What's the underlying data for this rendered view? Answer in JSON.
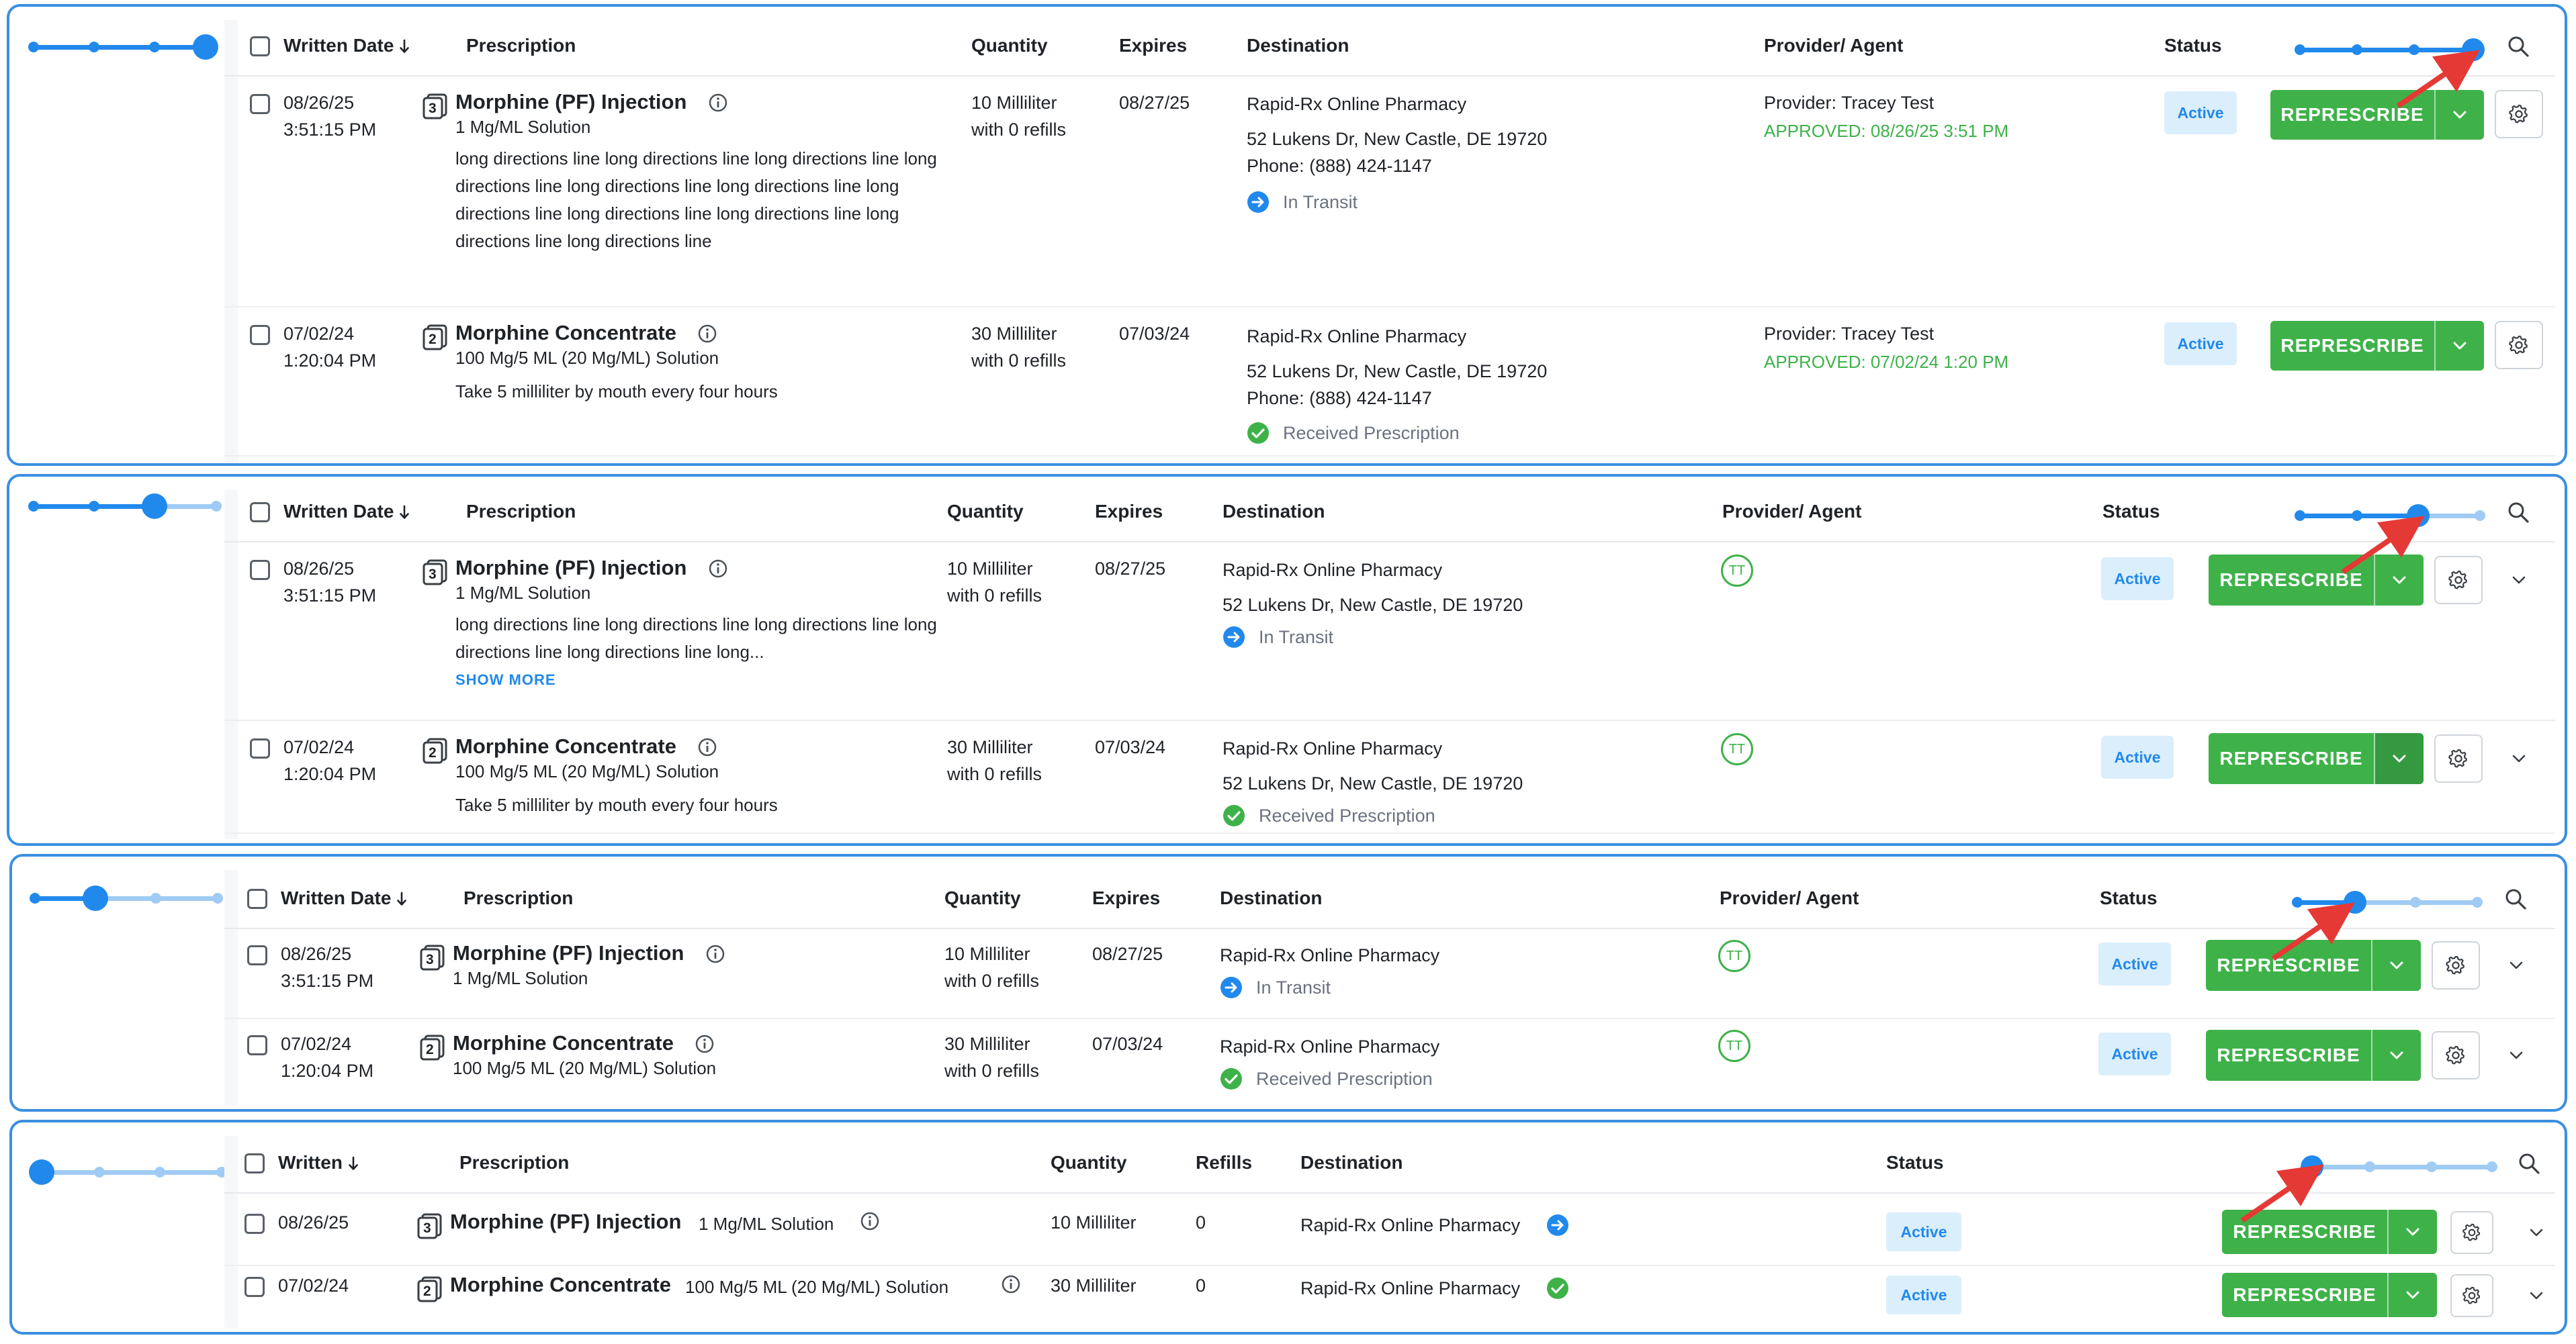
{
  "colors": {
    "accent_blue": "#2189ec",
    "slider_track_light": "#9fcbf4",
    "green": "#3eb249",
    "badge_bg": "#dbeefc",
    "panel_border": "#3b8fe0",
    "annotation_red": "#e53935"
  },
  "panels": [
    {
      "density_level": 4,
      "headers": {
        "written": "Written Date",
        "prescription": "Prescription",
        "quantity": "Quantity",
        "expires": "Expires",
        "destination": "Destination",
        "provider": "Provider/ Agent",
        "status": "Status"
      },
      "rows": [
        {
          "date": "08/26/25",
          "time": "3:51:15 PM",
          "rx_count": "3",
          "name": "Morphine (PF) Injection",
          "strength": "1 Mg/ML Solution",
          "directions": "long directions line long directions line long directions line long directions line long directions line long directions line long directions line long directions line long directions line long directions line long directions line",
          "qty": "10 Milliliter",
          "refills": "with 0 refills",
          "expires": "08/27/25",
          "pharmacy": "Rapid-Rx Online Pharmacy",
          "address": "52 Lukens Dr, New Castle, DE 19720",
          "phone": "Phone: (888) 424-1147",
          "transmission": "In Transit",
          "transmission_icon": "arrow-right-circle-icon",
          "provider": "Provider: Tracey Test",
          "approved": "APPROVED: 08/26/25 3:51 PM",
          "status": "Active",
          "action": "REPRESCRIBE"
        },
        {
          "date": "07/02/24",
          "time": "1:20:04 PM",
          "rx_count": "2",
          "name": "Morphine Concentrate",
          "strength": "100 Mg/5 ML (20 Mg/ML) Solution",
          "directions": "Take 5 milliliter by mouth every four hours",
          "qty": "30 Milliliter",
          "refills": "with 0 refills",
          "expires": "07/03/24",
          "pharmacy": "Rapid-Rx Online Pharmacy",
          "address": "52 Lukens Dr, New Castle, DE 19720",
          "phone": "Phone: (888) 424-1147",
          "transmission": "Received Prescription",
          "transmission_icon": "check-circle-icon",
          "provider": "Provider: Tracey Test",
          "approved": "APPROVED: 07/02/24 1:20 PM",
          "status": "Active",
          "action": "REPRESCRIBE"
        }
      ]
    },
    {
      "density_level": 3,
      "headers": {
        "written": "Written Date",
        "prescription": "Prescription",
        "quantity": "Quantity",
        "expires": "Expires",
        "destination": "Destination",
        "provider": "Provider/ Agent",
        "status": "Status"
      },
      "rows": [
        {
          "date": "08/26/25",
          "time": "3:51:15 PM",
          "rx_count": "3",
          "name": "Morphine (PF) Injection",
          "strength": "1 Mg/ML Solution",
          "directions": "long directions line long directions line long directions line long directions line long directions line long...",
          "show_more": "SHOW MORE",
          "qty": "10 Milliliter",
          "refills": "with 0 refills",
          "expires": "08/27/25",
          "pharmacy": "Rapid-Rx Online Pharmacy",
          "address": "52 Lukens Dr, New Castle, DE 19720",
          "transmission": "In Transit",
          "provider_initials": "TT",
          "status": "Active",
          "action": "REPRESCRIBE"
        },
        {
          "date": "07/02/24",
          "time": "1:20:04 PM",
          "rx_count": "2",
          "name": "Morphine Concentrate",
          "strength": "100 Mg/5 ML (20 Mg/ML) Solution",
          "directions": "Take 5 milliliter by mouth every four hours",
          "qty": "30 Milliliter",
          "refills": "with 0 refills",
          "expires": "07/03/24",
          "pharmacy": "Rapid-Rx Online Pharmacy",
          "address": "52 Lukens Dr, New Castle, DE 19720",
          "transmission": "Received Prescription",
          "provider_initials": "TT",
          "status": "Active",
          "action": "REPRESCRIBE"
        }
      ]
    },
    {
      "density_level": 2,
      "headers": {
        "written": "Written Date",
        "prescription": "Prescription",
        "quantity": "Quantity",
        "expires": "Expires",
        "destination": "Destination",
        "provider": "Provider/ Agent",
        "status": "Status"
      },
      "rows": [
        {
          "date": "08/26/25",
          "time": "3:51:15 PM",
          "rx_count": "3",
          "name": "Morphine (PF) Injection",
          "strength": "1 Mg/ML Solution",
          "qty": "10 Milliliter",
          "refills": "with 0 refills",
          "expires": "08/27/25",
          "pharmacy": "Rapid-Rx Online Pharmacy",
          "transmission": "In Transit",
          "provider_initials": "TT",
          "status": "Active",
          "action": "REPRESCRIBE"
        },
        {
          "date": "07/02/24",
          "time": "1:20:04 PM",
          "rx_count": "2",
          "name": "Morphine Concentrate",
          "strength": "100 Mg/5 ML (20 Mg/ML) Solution",
          "qty": "30 Milliliter",
          "refills": "with 0 refills",
          "expires": "07/03/24",
          "pharmacy": "Rapid-Rx Online Pharmacy",
          "transmission": "Received Prescription",
          "provider_initials": "TT",
          "status": "Active",
          "action": "REPRESCRIBE"
        }
      ]
    },
    {
      "density_level": 1,
      "headers": {
        "written": "Written",
        "prescription": "Prescription",
        "quantity": "Quantity",
        "refills": "Refills",
        "destination": "Destination",
        "status": "Status"
      },
      "rows": [
        {
          "date": "08/26/25",
          "rx_count": "3",
          "name": "Morphine (PF) Injection",
          "strength": "1 Mg/ML Solution",
          "qty": "10 Milliliter",
          "refills": "0",
          "pharmacy": "Rapid-Rx Online Pharmacy",
          "transmission_icon": "arrow-right-circle-icon",
          "status": "Active",
          "action": "REPRESCRIBE"
        },
        {
          "date": "07/02/24",
          "rx_count": "2",
          "name": "Morphine Concentrate",
          "strength": "100 Mg/5 ML (20 Mg/ML) Solution",
          "qty": "30 Milliliter",
          "refills": "0",
          "pharmacy": "Rapid-Rx Online Pharmacy",
          "transmission_icon": "check-circle-icon",
          "status": "Active",
          "action": "REPRESCRIBE"
        }
      ]
    }
  ]
}
